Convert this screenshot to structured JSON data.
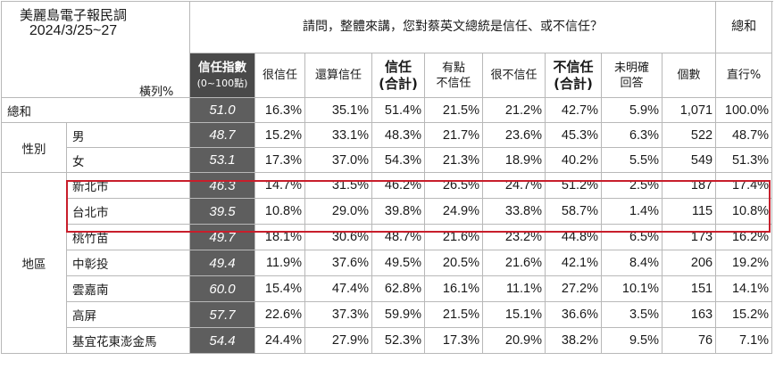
{
  "title": "美麗島電子報民調",
  "date": "2024/3/25~27",
  "row_axis_label": "橫列%",
  "question": "請問，整體來講，您對蔡英文總統是信任、或不信任？",
  "total_header": "總和",
  "headers": {
    "index_line1": "信任指數",
    "index_line2": "(0~100點)",
    "very_trust": "很信任",
    "somewhat_trust": "還算信任",
    "trust_total_1": "信任",
    "trust_total_2": "(合計)",
    "somewhat_distrust_1": "有點",
    "somewhat_distrust_2": "不信任",
    "very_distrust": "很不信任",
    "distrust_total_1": "不信任",
    "distrust_total_2": "(合計)",
    "undecided_1": "未明確",
    "undecided_2": "回答",
    "count": "個數",
    "row_pct": "直行%"
  },
  "groups": {
    "gender": "性別",
    "region": "地區"
  },
  "rows": [
    {
      "label": "總和",
      "index": "51.0",
      "very_trust": "16.3%",
      "somewhat_trust": "35.1%",
      "trust": "51.4%",
      "somewhat_distrust": "21.5%",
      "very_distrust": "21.2%",
      "distrust": "42.7%",
      "undecided": "5.9%",
      "count": "1,071",
      "pct": "100.0%"
    },
    {
      "label": "男",
      "index": "48.7",
      "very_trust": "15.2%",
      "somewhat_trust": "33.1%",
      "trust": "48.3%",
      "somewhat_distrust": "21.7%",
      "very_distrust": "23.6%",
      "distrust": "45.3%",
      "undecided": "6.3%",
      "count": "522",
      "pct": "48.7%"
    },
    {
      "label": "女",
      "index": "53.1",
      "very_trust": "17.3%",
      "somewhat_trust": "37.0%",
      "trust": "54.3%",
      "somewhat_distrust": "21.3%",
      "very_distrust": "18.9%",
      "distrust": "40.2%",
      "undecided": "5.5%",
      "count": "549",
      "pct": "51.3%"
    },
    {
      "label": "新北市",
      "index": "46.3",
      "very_trust": "14.7%",
      "somewhat_trust": "31.5%",
      "trust": "46.2%",
      "somewhat_distrust": "26.5%",
      "very_distrust": "24.7%",
      "distrust": "51.2%",
      "undecided": "2.5%",
      "count": "187",
      "pct": "17.4%"
    },
    {
      "label": "台北市",
      "index": "39.5",
      "very_trust": "10.8%",
      "somewhat_trust": "29.0%",
      "trust": "39.8%",
      "somewhat_distrust": "24.9%",
      "very_distrust": "33.8%",
      "distrust": "58.7%",
      "undecided": "1.4%",
      "count": "115",
      "pct": "10.8%"
    },
    {
      "label": "桃竹苗",
      "index": "49.7",
      "very_trust": "18.1%",
      "somewhat_trust": "30.6%",
      "trust": "48.7%",
      "somewhat_distrust": "21.6%",
      "very_distrust": "23.2%",
      "distrust": "44.8%",
      "undecided": "6.5%",
      "count": "173",
      "pct": "16.2%"
    },
    {
      "label": "中彰投",
      "index": "49.4",
      "very_trust": "11.9%",
      "somewhat_trust": "37.6%",
      "trust": "49.5%",
      "somewhat_distrust": "20.5%",
      "very_distrust": "21.6%",
      "distrust": "42.1%",
      "undecided": "8.4%",
      "count": "206",
      "pct": "19.2%"
    },
    {
      "label": "雲嘉南",
      "index": "60.0",
      "very_trust": "15.4%",
      "somewhat_trust": "47.4%",
      "trust": "62.8%",
      "somewhat_distrust": "16.1%",
      "very_distrust": "11.1%",
      "distrust": "27.2%",
      "undecided": "10.1%",
      "count": "151",
      "pct": "14.1%"
    },
    {
      "label": "高屏",
      "index": "57.7",
      "very_trust": "22.6%",
      "somewhat_trust": "37.3%",
      "trust": "59.9%",
      "somewhat_distrust": "21.5%",
      "very_distrust": "15.1%",
      "distrust": "36.6%",
      "undecided": "3.5%",
      "count": "163",
      "pct": "15.2%"
    },
    {
      "label": "基宜花東澎金馬",
      "index": "54.4",
      "very_trust": "24.4%",
      "somewhat_trust": "27.9%",
      "trust": "52.3%",
      "somewhat_distrust": "17.3%",
      "very_distrust": "20.9%",
      "distrust": "38.2%",
      "undecided": "9.5%",
      "count": "76",
      "pct": "7.1%"
    }
  ],
  "highlight_color": "#c81e2b",
  "index_cell_color": "#5e5e5e"
}
